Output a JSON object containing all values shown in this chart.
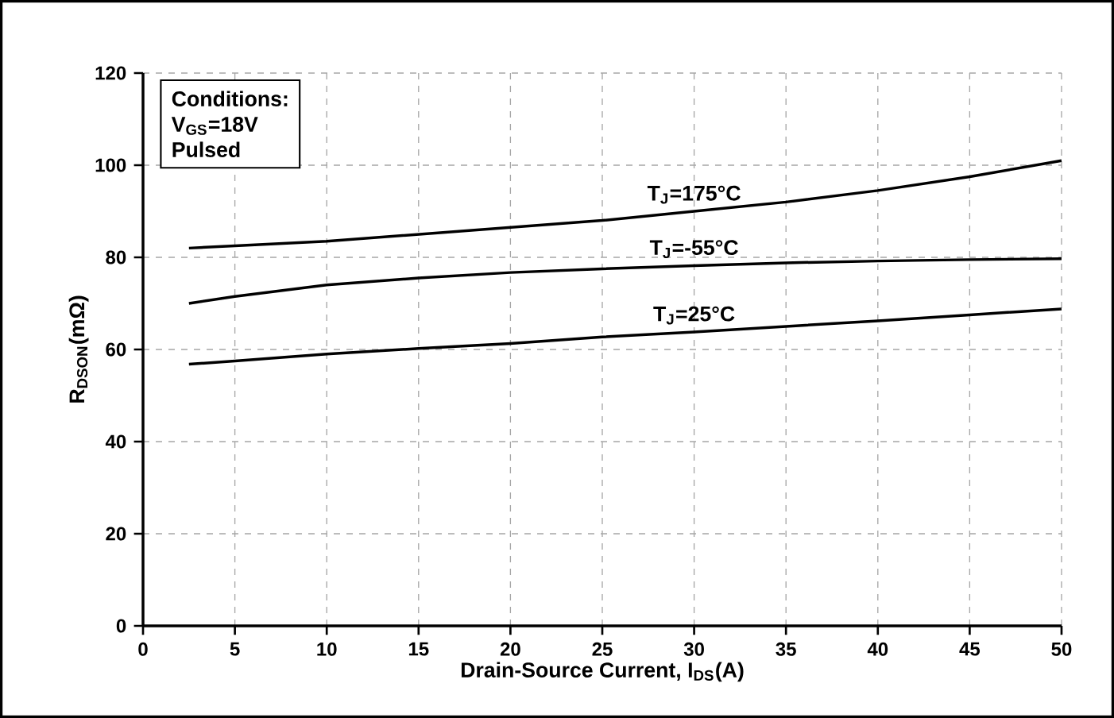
{
  "chart_data": {
    "type": "line",
    "xlabel": "Drain-Source Current, I$_{DS}$(A)",
    "ylabel": "R$_{DSON}$(mΩ)",
    "annotations": [
      "Conditions:",
      "V$_{GS}$=18V",
      "Pulsed"
    ],
    "x": [
      2.5,
      5,
      10,
      15,
      20,
      25,
      30,
      35,
      40,
      45,
      50
    ],
    "series": [
      {
        "name": "T$_{J}$=175°C",
        "color": "#000000",
        "values": [
          82,
          82.5,
          83.5,
          85,
          86.5,
          88,
          90,
          92,
          94.5,
          97.5,
          101
        ]
      },
      {
        "name": "T$_{J}$=-55°C",
        "color": "#000000",
        "values": [
          70,
          71.5,
          74,
          75.5,
          76.7,
          77.5,
          78.2,
          78.8,
          79.2,
          79.5,
          79.7
        ]
      },
      {
        "name": "T$_{J}$=25°C",
        "color": "#000000",
        "values": [
          56.8,
          57.5,
          59,
          60.2,
          61.3,
          62.7,
          63.8,
          65,
          66.2,
          67.5,
          68.8
        ]
      }
    ],
    "xlim": [
      0,
      50
    ],
    "ylim": [
      0,
      120
    ],
    "xticks": [
      0,
      5,
      10,
      15,
      20,
      25,
      30,
      35,
      40,
      45,
      50
    ],
    "yticks": [
      0,
      20,
      40,
      60,
      80,
      100,
      120
    ],
    "grid": true,
    "legend": false,
    "marker": "none",
    "line_style": "solid"
  }
}
